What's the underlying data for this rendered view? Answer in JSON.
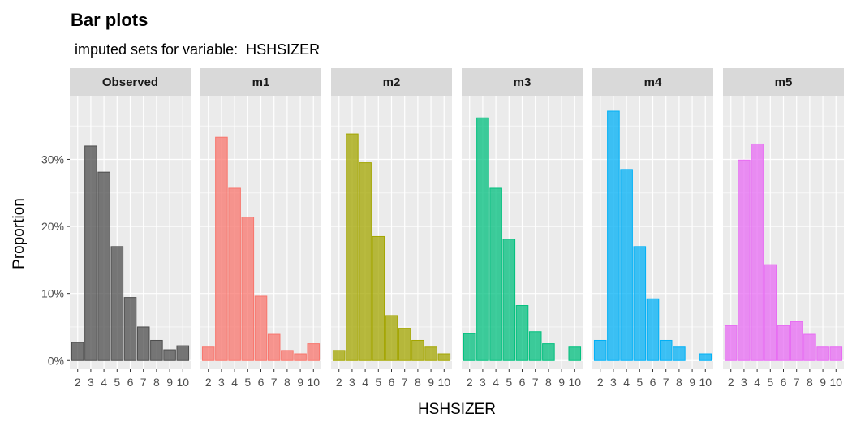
{
  "chart_data": {
    "type": "bar",
    "title": "Bar plots",
    "subtitle": " imputed sets for variable:  HSHSIZER",
    "xlabel": "HSHSIZER",
    "ylabel": "Proportion",
    "categories": [
      "2",
      "3",
      "4",
      "5",
      "6",
      "7",
      "8",
      "9",
      "10"
    ],
    "y_ticks": [
      0,
      0.1,
      0.2,
      0.3
    ],
    "y_tick_labels": [
      "0%",
      "10%",
      "20%",
      "30%"
    ],
    "ylim": [
      -0.013,
      0.395
    ],
    "grid": true,
    "legend": "none",
    "panels": [
      {
        "name": "Observed",
        "color": "#4d4d4d",
        "values": [
          0.027,
          0.32,
          0.281,
          0.17,
          0.094,
          0.05,
          0.03,
          0.016,
          0.022
        ]
      },
      {
        "name": "m1",
        "color": "#f8766d",
        "values": [
          0.02,
          0.333,
          0.257,
          0.214,
          0.096,
          0.039,
          0.015,
          0.01,
          0.025
        ]
      },
      {
        "name": "m2",
        "color": "#a3a500",
        "values": [
          0.015,
          0.338,
          0.295,
          0.185,
          0.067,
          0.048,
          0.03,
          0.02,
          0.01
        ]
      },
      {
        "name": "m3",
        "color": "#00bf7d",
        "values": [
          0.04,
          0.362,
          0.257,
          0.181,
          0.082,
          0.043,
          0.025,
          0.0,
          0.02
        ]
      },
      {
        "name": "m4",
        "color": "#00b0f6",
        "values": [
          0.03,
          0.372,
          0.285,
          0.17,
          0.092,
          0.03,
          0.02,
          0.0,
          0.01
        ]
      },
      {
        "name": "m5",
        "color": "#e76bf3",
        "values": [
          0.052,
          0.299,
          0.323,
          0.143,
          0.052,
          0.058,
          0.039,
          0.02,
          0.02
        ]
      }
    ]
  }
}
